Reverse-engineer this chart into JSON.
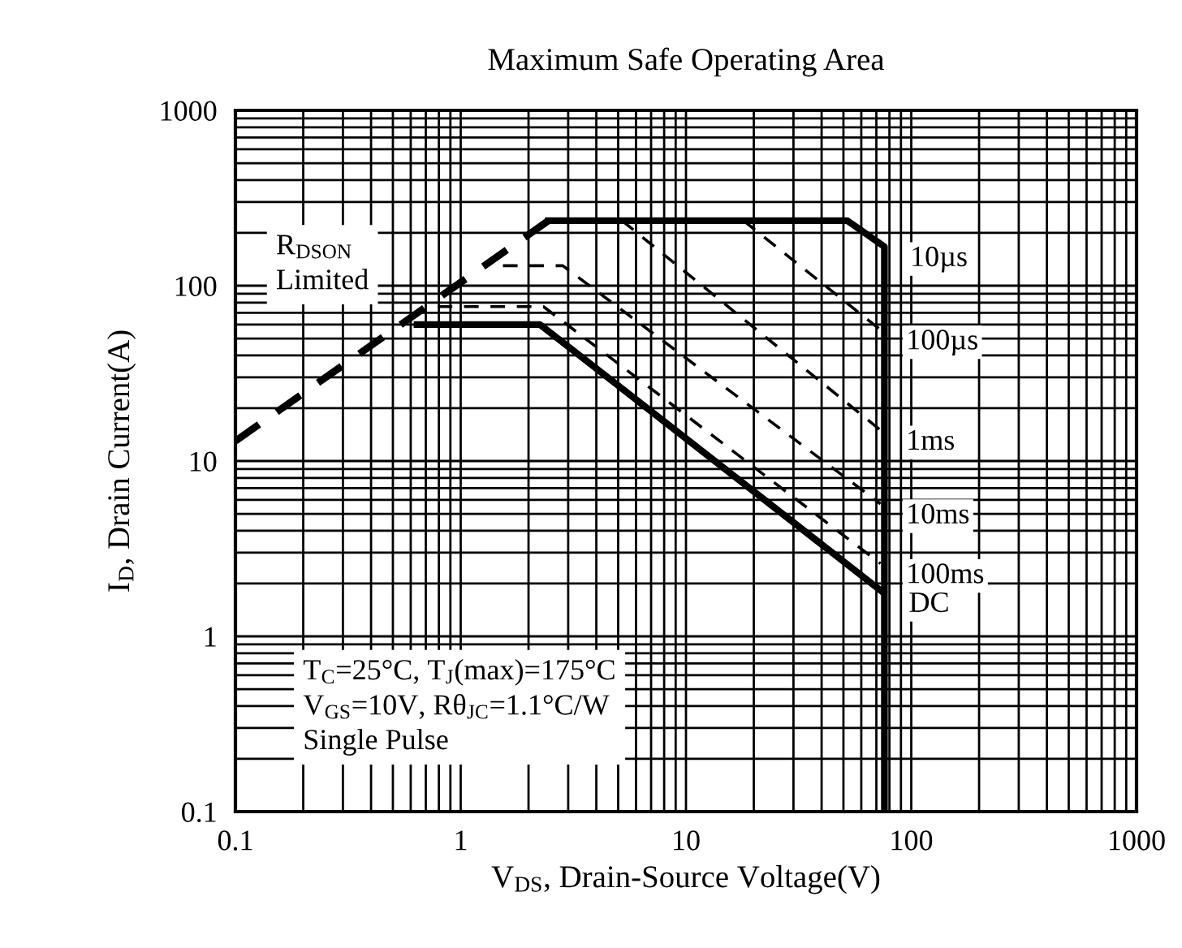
{
  "chart_data": {
    "type": "line",
    "title": "Maximum Safe Operating Area",
    "xlabel": "V$_{DS}$, Drain-Source Voltage(V)",
    "ylabel": "I$_{D}$, Drain Current(A)",
    "log": "xy",
    "xlim": [
      0.1,
      1000
    ],
    "ylim": [
      0.1,
      1000
    ],
    "xticks": [
      0.1,
      1,
      10,
      100,
      1000
    ],
    "yticks": [
      0.1,
      1,
      10,
      100,
      1000
    ],
    "grid": true,
    "legend": false,
    "series": [
      {
        "color": "#000000",
        "line_style": "dashed",
        "x": [
          0.1,
          2.45
        ],
        "values": [
          13,
          235
        ]
      },
      {
        "name": "10µs",
        "color": "#000000",
        "line_style": "solid",
        "x": [
          2.45,
          52,
          76,
          76
        ],
        "values": [
          235,
          235,
          167,
          0.1
        ]
      },
      {
        "name": "100µs",
        "color": "#000000",
        "line_style": "dashed",
        "x": [
          18,
          73
        ],
        "values": [
          235,
          56
        ]
      },
      {
        "name": "1ms",
        "color": "#000000",
        "line_style": "dashed",
        "x": [
          5.2,
          73
        ],
        "values": [
          235,
          15
        ]
      },
      {
        "name": "10ms",
        "color": "#000000",
        "line_style": "dashed",
        "x": [
          1.54,
          2.84,
          73
        ],
        "values": [
          130,
          130,
          5.7
        ]
      },
      {
        "name": "100ms",
        "color": "#000000",
        "line_style": "dashed",
        "x": [
          0.79,
          2.33,
          73
        ],
        "values": [
          76,
          76,
          2.6
        ]
      },
      {
        "name": "DC",
        "color": "#000000",
        "line_style": "solid",
        "x": [
          0.64,
          2.25,
          75
        ],
        "values": [
          60,
          60,
          1.78
        ]
      }
    ],
    "annotations": [
      "R$_{DSON}$\nLimited",
      "T$_{C}$=25°C, T$_{J}$(max)=175°C\nV$_{GS}$=10V, Rθ$_{JC}$=1.1°C/W\nSingle Pulse"
    ]
  }
}
